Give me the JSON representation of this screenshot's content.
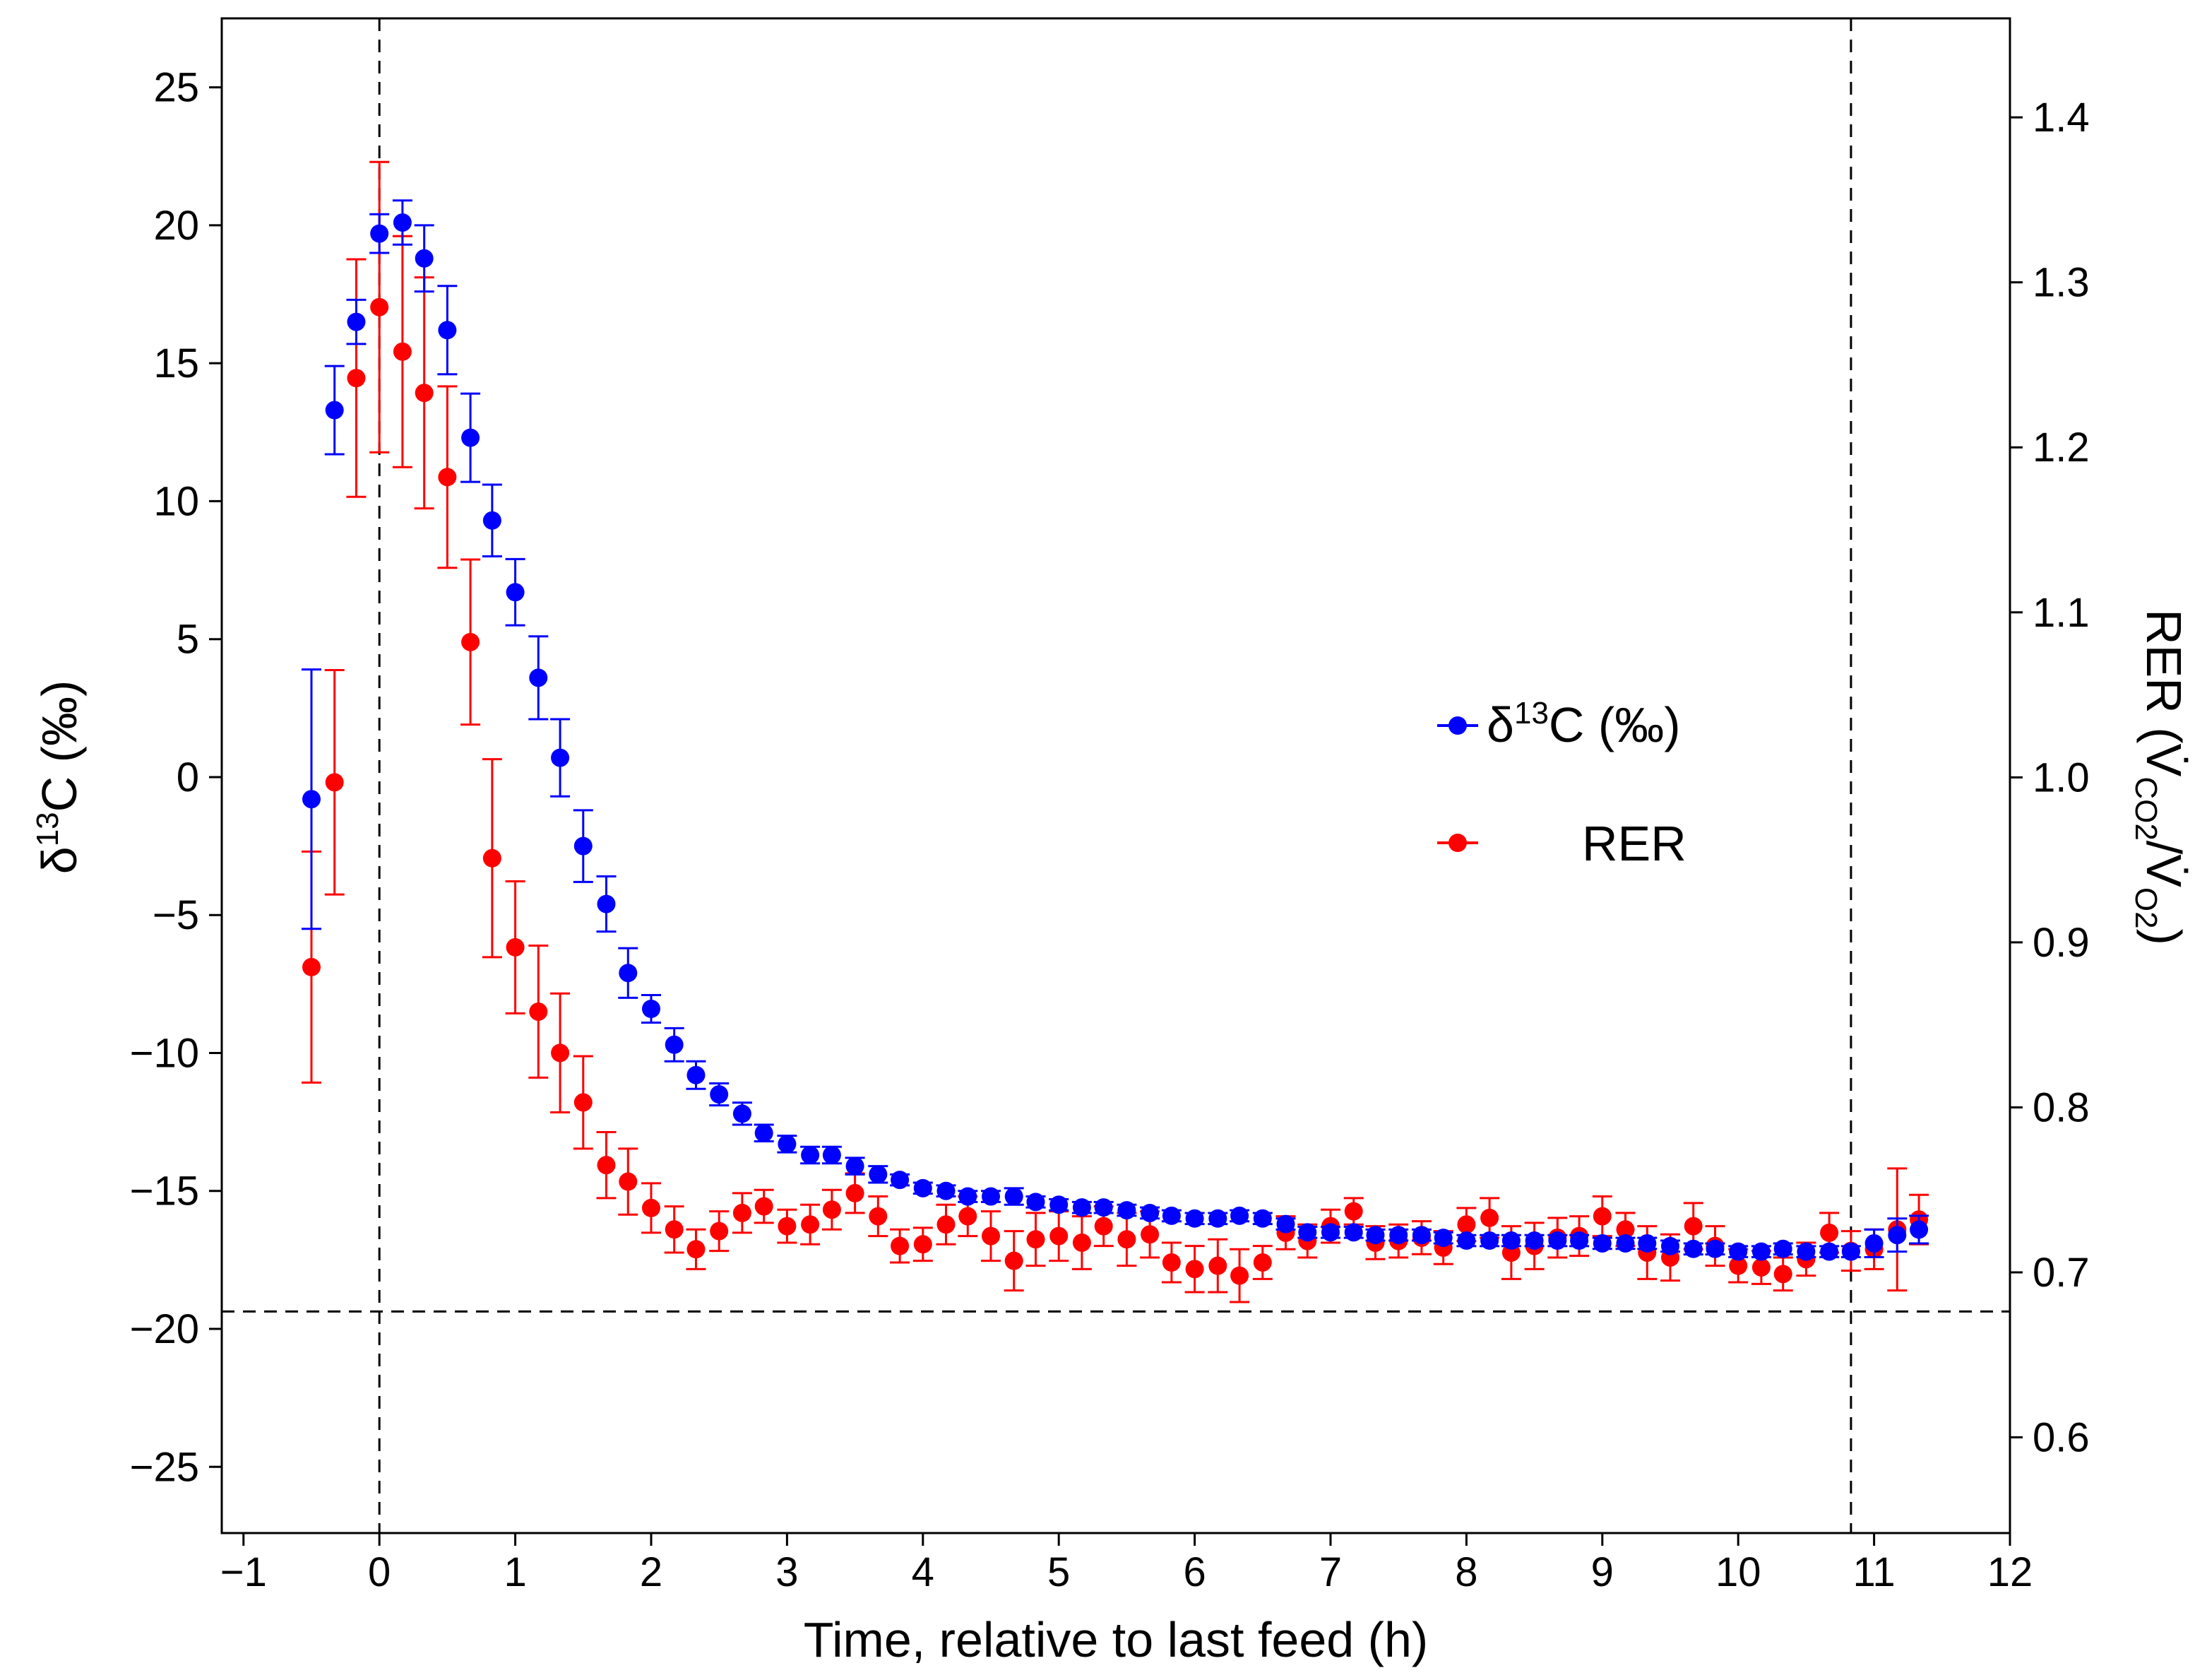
{
  "chart_data": {
    "type": "scatter",
    "xlabel": "Time, relative to last feed (h)",
    "ylabel_left": {
      "main": "δ",
      "sup": "13",
      "rest": "C (‰)"
    },
    "ylabel_right": {
      "pre": "RER (V̇",
      "sub1": "CO2",
      "mid": "/V̇",
      "sub2": "O2",
      "post": ")"
    },
    "xlim": [
      -1.16,
      12
    ],
    "ylim_left": [
      -27.4,
      27.5
    ],
    "ylim_right": [
      0.542,
      1.46
    ],
    "xticks": [
      -1,
      0,
      1,
      2,
      3,
      4,
      5,
      6,
      7,
      8,
      9,
      10,
      11,
      12
    ],
    "yticks_left": [
      -25,
      -20,
      -15,
      -10,
      -5,
      0,
      5,
      10,
      15,
      20,
      25
    ],
    "yticks_right": [
      0.6,
      0.7,
      0.8,
      0.9,
      1.0,
      1.1,
      1.2,
      1.3,
      1.4
    ],
    "yticks_right_labels": [
      "0.6",
      "0.7",
      "0.8",
      "0.9",
      "1.0",
      "1.1",
      "1.2",
      "1.3",
      "1.4"
    ],
    "reference_lines": {
      "vertical_x": [
        0,
        10.83
      ],
      "horizontal_left_y": -19.37
    },
    "legend": {
      "placement": "center-right",
      "entries": [
        {
          "label_main": "δ",
          "label_sup": "13",
          "label_rest": "C (‰)",
          "color": "#0000ff"
        },
        {
          "label": "RER",
          "color": "#ff0000"
        }
      ]
    },
    "x": [
      -0.5,
      -0.33,
      -0.17,
      0,
      0.17,
      0.33,
      0.5,
      0.67,
      0.83,
      1.0,
      1.17,
      1.33,
      1.5,
      1.67,
      1.83,
      2.0,
      2.17,
      2.33,
      2.5,
      2.67,
      2.83,
      3.0,
      3.17,
      3.33,
      3.5,
      3.67,
      3.83,
      4.0,
      4.17,
      4.33,
      4.5,
      4.67,
      4.83,
      5.0,
      5.17,
      5.33,
      5.5,
      5.67,
      5.83,
      6.0,
      6.17,
      6.33,
      6.5,
      6.67,
      6.83,
      7.0,
      7.17,
      7.33,
      7.5,
      7.67,
      7.83,
      8.0,
      8.17,
      8.33,
      8.5,
      8.67,
      8.83,
      9.0,
      9.17,
      9.33,
      9.5,
      9.67,
      9.83,
      10.0,
      10.17,
      10.33,
      10.5,
      10.67,
      10.83,
      11.0,
      11.17,
      11.33
    ],
    "series": [
      {
        "name": "δ13C (‰)",
        "axis": "left",
        "color": "#0000ff",
        "values": [
          -0.8,
          13.3,
          16.5,
          19.7,
          20.1,
          18.8,
          16.2,
          12.3,
          9.3,
          6.7,
          3.6,
          0.7,
          -2.5,
          -4.6,
          -7.1,
          -8.4,
          -9.7,
          -10.8,
          -11.5,
          -12.2,
          -12.9,
          -13.3,
          -13.7,
          -13.7,
          -14.1,
          -14.4,
          -14.6,
          -14.9,
          -15.0,
          -15.2,
          -15.2,
          -15.2,
          -15.4,
          -15.5,
          -15.6,
          -15.6,
          -15.7,
          -15.8,
          -15.9,
          -16.0,
          -16.0,
          -15.9,
          -16.0,
          -16.2,
          -16.5,
          -16.5,
          -16.5,
          -16.6,
          -16.6,
          -16.6,
          -16.7,
          -16.8,
          -16.8,
          -16.8,
          -16.8,
          -16.8,
          -16.8,
          -16.9,
          -16.9,
          -16.9,
          -17.0,
          -17.1,
          -17.1,
          -17.2,
          -17.2,
          -17.1,
          -17.2,
          -17.2,
          -17.2,
          -16.9,
          -16.6,
          -16.4
        ],
        "errors": [
          4.7,
          1.6,
          0.8,
          0.7,
          0.8,
          1.2,
          1.6,
          1.6,
          1.3,
          1.2,
          1.5,
          1.4,
          1.3,
          1.0,
          0.9,
          0.5,
          0.6,
          0.5,
          0.4,
          0.4,
          0.3,
          0.3,
          0.3,
          0.3,
          0.3,
          0.3,
          0.2,
          0.2,
          0.2,
          0.2,
          0.2,
          0.3,
          0.2,
          0.2,
          0.2,
          0.2,
          0.2,
          0.2,
          0.2,
          0.2,
          0.2,
          0.2,
          0.2,
          0.2,
          0.2,
          0.2,
          0.2,
          0.2,
          0.2,
          0.2,
          0.2,
          0.2,
          0.2,
          0.2,
          0.2,
          0.2,
          0.2,
          0.2,
          0.2,
          0.2,
          0.2,
          0.2,
          0.2,
          0.2,
          0.2,
          0.2,
          0.2,
          0.2,
          0.2,
          0.5,
          0.6,
          0.5
        ]
      },
      {
        "name": "RER",
        "axis": "right",
        "color": "#ff0000",
        "values": [
          0.885,
          0.997,
          1.242,
          1.285,
          1.258,
          1.233,
          1.182,
          1.082,
          0.951,
          0.897,
          0.858,
          0.833,
          0.803,
          0.765,
          0.755,
          0.739,
          0.726,
          0.714,
          0.725,
          0.736,
          0.74,
          0.728,
          0.729,
          0.738,
          0.748,
          0.734,
          0.716,
          0.717,
          0.729,
          0.734,
          0.722,
          0.707,
          0.72,
          0.722,
          0.718,
          0.728,
          0.72,
          0.723,
          0.706,
          0.702,
          0.704,
          0.698,
          0.706,
          0.724,
          0.719,
          0.728,
          0.737,
          0.718,
          0.719,
          0.721,
          0.715,
          0.729,
          0.733,
          0.712,
          0.716,
          0.721,
          0.722,
          0.734,
          0.726,
          0.712,
          0.709,
          0.728,
          0.716,
          0.704,
          0.703,
          0.699,
          0.708,
          0.724,
          0.713,
          0.714,
          0.726,
          0.732
        ],
        "errors": [
          0.07,
          0.068,
          0.072,
          0.088,
          0.07,
          0.07,
          0.055,
          0.05,
          0.06,
          0.04,
          0.04,
          0.036,
          0.028,
          0.02,
          0.02,
          0.015,
          0.014,
          0.012,
          0.012,
          0.012,
          0.01,
          0.01,
          0.012,
          0.012,
          0.012,
          0.012,
          0.01,
          0.01,
          0.012,
          0.012,
          0.015,
          0.018,
          0.016,
          0.015,
          0.016,
          0.012,
          0.016,
          0.014,
          0.012,
          0.014,
          0.016,
          0.016,
          0.01,
          0.01,
          0.01,
          0.01,
          0.008,
          0.01,
          0.01,
          0.01,
          0.01,
          0.01,
          0.012,
          0.016,
          0.014,
          0.012,
          0.012,
          0.012,
          0.01,
          0.016,
          0.014,
          0.014,
          0.012,
          0.01,
          0.01,
          0.01,
          0.01,
          0.012,
          0.012,
          0.012,
          0.037,
          0.015
        ]
      }
    ]
  }
}
